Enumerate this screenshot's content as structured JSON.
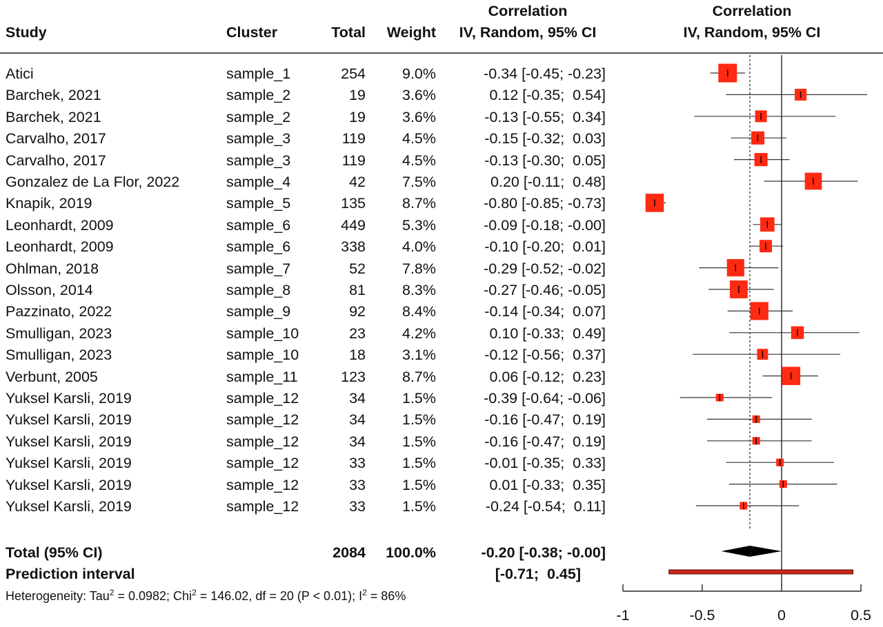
{
  "headers": {
    "study": "Study",
    "cluster": "Cluster",
    "total": "Total",
    "weight": "Weight",
    "ci_title": "Correlation",
    "ci_sub": "IV, Random, 95% CI",
    "plot_title": "Correlation",
    "plot_sub": "IV, Random, 95% CI"
  },
  "chart_data": {
    "type": "forest",
    "xlim": [
      -1,
      0.5
    ],
    "xticks": [
      -1,
      -0.5,
      0,
      0.5
    ],
    "xtick_labels": [
      "-1",
      "-0.5",
      "0",
      "0.5"
    ],
    "reference_line": 0,
    "pooled_line": -0.2,
    "colors": {
      "box": "#ff2a12",
      "prediction": "#c8281a",
      "line": "#333333",
      "diamond": "#000000"
    },
    "studies": [
      {
        "study": "Atici",
        "cluster": "sample_1",
        "total": "254",
        "weight": "9.0%",
        "ci_text": "-0.34 [-0.45; -0.23]",
        "est": -0.34,
        "lo": -0.45,
        "hi": -0.23,
        "w": 9.0
      },
      {
        "study": "Barchek, 2021",
        "cluster": "sample_2",
        "total": "19",
        "weight": "3.6%",
        "ci_text": "0.12 [-0.35;  0.54]",
        "est": 0.12,
        "lo": -0.35,
        "hi": 0.54,
        "w": 3.6
      },
      {
        "study": "Barchek, 2021",
        "cluster": "sample_2",
        "total": "19",
        "weight": "3.6%",
        "ci_text": "-0.13 [-0.55;  0.34]",
        "est": -0.13,
        "lo": -0.55,
        "hi": 0.34,
        "w": 3.6
      },
      {
        "study": "Carvalho, 2017",
        "cluster": "sample_3",
        "total": "119",
        "weight": "4.5%",
        "ci_text": "-0.15 [-0.32;  0.03]",
        "est": -0.15,
        "lo": -0.32,
        "hi": 0.03,
        "w": 4.5
      },
      {
        "study": "Carvalho, 2017",
        "cluster": "sample_3",
        "total": "119",
        "weight": "4.5%",
        "ci_text": "-0.13 [-0.30;  0.05]",
        "est": -0.13,
        "lo": -0.3,
        "hi": 0.05,
        "w": 4.5
      },
      {
        "study": "Gonzalez de La Flor, 2022",
        "cluster": "sample_4",
        "total": "42",
        "weight": "7.5%",
        "ci_text": "0.20 [-0.11;  0.48]",
        "est": 0.2,
        "lo": -0.11,
        "hi": 0.48,
        "w": 7.5
      },
      {
        "study": "Knapik, 2019",
        "cluster": "sample_5",
        "total": "135",
        "weight": "8.7%",
        "ci_text": "-0.80 [-0.85; -0.73]",
        "est": -0.8,
        "lo": -0.85,
        "hi": -0.73,
        "w": 8.7
      },
      {
        "study": "Leonhardt, 2009",
        "cluster": "sample_6",
        "total": "449",
        "weight": "5.3%",
        "ci_text": "-0.09 [-0.18; -0.00]",
        "est": -0.09,
        "lo": -0.18,
        "hi": 0.0,
        "w": 5.3
      },
      {
        "study": "Leonhardt, 2009",
        "cluster": "sample_6",
        "total": "338",
        "weight": "4.0%",
        "ci_text": "-0.10 [-0.20;  0.01]",
        "est": -0.1,
        "lo": -0.2,
        "hi": 0.01,
        "w": 4.0
      },
      {
        "study": "Ohlman, 2018",
        "cluster": "sample_7",
        "total": "52",
        "weight": "7.8%",
        "ci_text": "-0.29 [-0.52; -0.02]",
        "est": -0.29,
        "lo": -0.52,
        "hi": -0.02,
        "w": 7.8
      },
      {
        "study": "Olsson, 2014",
        "cluster": "sample_8",
        "total": "81",
        "weight": "8.3%",
        "ci_text": "-0.27 [-0.46; -0.05]",
        "est": -0.27,
        "lo": -0.46,
        "hi": -0.05,
        "w": 8.3
      },
      {
        "study": "Pazzinato, 2022",
        "cluster": "sample_9",
        "total": "92",
        "weight": "8.4%",
        "ci_text": "-0.14 [-0.34;  0.07]",
        "est": -0.14,
        "lo": -0.34,
        "hi": 0.07,
        "w": 8.4
      },
      {
        "study": "Smulligan, 2023",
        "cluster": "sample_10",
        "total": "23",
        "weight": "4.2%",
        "ci_text": "0.10 [-0.33;  0.49]",
        "est": 0.1,
        "lo": -0.33,
        "hi": 0.49,
        "w": 4.2
      },
      {
        "study": "Smulligan, 2023",
        "cluster": "sample_10",
        "total": "18",
        "weight": "3.1%",
        "ci_text": "-0.12 [-0.56;  0.37]",
        "est": -0.12,
        "lo": -0.56,
        "hi": 0.37,
        "w": 3.1
      },
      {
        "study": "Verbunt, 2005",
        "cluster": "sample_11",
        "total": "123",
        "weight": "8.7%",
        "ci_text": "0.06 [-0.12;  0.23]",
        "est": 0.06,
        "lo": -0.12,
        "hi": 0.23,
        "w": 8.7
      },
      {
        "study": "Yuksel Karsli, 2019",
        "cluster": "sample_12",
        "total": "34",
        "weight": "1.5%",
        "ci_text": "-0.39 [-0.64; -0.06]",
        "est": -0.39,
        "lo": -0.64,
        "hi": -0.06,
        "w": 1.5
      },
      {
        "study": "Yuksel Karsli, 2019",
        "cluster": "sample_12",
        "total": "34",
        "weight": "1.5%",
        "ci_text": "-0.16 [-0.47;  0.19]",
        "est": -0.16,
        "lo": -0.47,
        "hi": 0.19,
        "w": 1.5
      },
      {
        "study": "Yuksel Karsli, 2019",
        "cluster": "sample_12",
        "total": "34",
        "weight": "1.5%",
        "ci_text": "-0.16 [-0.47;  0.19]",
        "est": -0.16,
        "lo": -0.47,
        "hi": 0.19,
        "w": 1.5
      },
      {
        "study": "Yuksel Karsli, 2019",
        "cluster": "sample_12",
        "total": "33",
        "weight": "1.5%",
        "ci_text": "-0.01 [-0.35;  0.33]",
        "est": -0.01,
        "lo": -0.35,
        "hi": 0.33,
        "w": 1.5
      },
      {
        "study": "Yuksel Karsli, 2019",
        "cluster": "sample_12",
        "total": "33",
        "weight": "1.5%",
        "ci_text": "0.01 [-0.33;  0.35]",
        "est": 0.01,
        "lo": -0.33,
        "hi": 0.35,
        "w": 1.5
      },
      {
        "study": "Yuksel Karsli, 2019",
        "cluster": "sample_12",
        "total": "33",
        "weight": "1.5%",
        "ci_text": "-0.24 [-0.54;  0.11]",
        "est": -0.24,
        "lo": -0.54,
        "hi": 0.11,
        "w": 1.5
      }
    ],
    "pooled": {
      "label": "Total (95% CI)",
      "total": "2084",
      "weight": "100.0%",
      "ci_text": "-0.20 [-0.38; -0.00]",
      "est": -0.2,
      "lo": -0.38,
      "hi": 0.0
    },
    "prediction": {
      "label": "Prediction interval",
      "ci_text": "[-0.71;  0.45]",
      "lo": -0.71,
      "hi": 0.45
    },
    "heterogeneity": {
      "prefix": "Heterogeneity: Tau",
      "sup1": "2",
      "mid": " = 0.0982; Chi",
      "sup2": "2",
      "mid2": " = 146.02, df = 20 (P < 0.01); I",
      "sup3": "2",
      "suffix": " = 86%"
    }
  }
}
